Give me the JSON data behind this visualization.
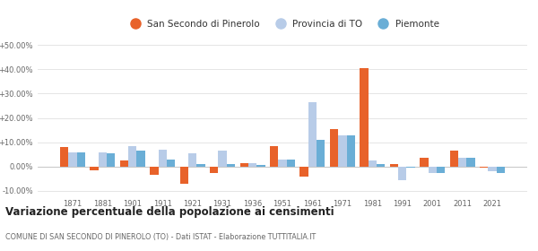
{
  "years": [
    1871,
    1881,
    1901,
    1911,
    1921,
    1931,
    1936,
    1951,
    1961,
    1971,
    1981,
    1991,
    2001,
    2011,
    2021
  ],
  "san_secondo": [
    8.0,
    -1.5,
    2.5,
    -3.5,
    -7.0,
    -2.5,
    1.5,
    8.5,
    -4.0,
    15.5,
    40.5,
    1.0,
    3.5,
    6.5,
    -0.3
  ],
  "provincia_to": [
    6.0,
    6.0,
    8.5,
    7.0,
    5.5,
    6.5,
    1.5,
    3.0,
    26.5,
    13.0,
    2.5,
    -5.5,
    -2.5,
    3.5,
    -2.0
  ],
  "piemonte": [
    6.0,
    5.5,
    6.5,
    3.0,
    1.0,
    1.0,
    0.5,
    3.0,
    11.0,
    13.0,
    1.0,
    -0.5,
    -2.5,
    3.5,
    -2.5
  ],
  "color_san_secondo": "#e8622a",
  "color_provincia": "#b8cce8",
  "color_piemonte": "#6aaed6",
  "legend_labels": [
    "San Secondo di Pinerolo",
    "Provincia di TO",
    "Piemonte"
  ],
  "title": "Variazione percentuale della popolazione ai censimenti",
  "subtitle": "COMUNE DI SAN SECONDO DI PINEROLO (TO) - Dati ISTAT - Elaborazione TUTTITALIA.IT",
  "ylim": [
    -12,
    52
  ],
  "yticks": [
    -10,
    0,
    10,
    20,
    30,
    40,
    50
  ],
  "ytick_labels": [
    "-10.00%",
    "0.00%",
    "+10.00%",
    "+20.00%",
    "+30.00%",
    "+40.00%",
    "+50.00%"
  ],
  "bar_width": 0.28,
  "background_color": "#ffffff",
  "grid_color": "#e0e0e0"
}
